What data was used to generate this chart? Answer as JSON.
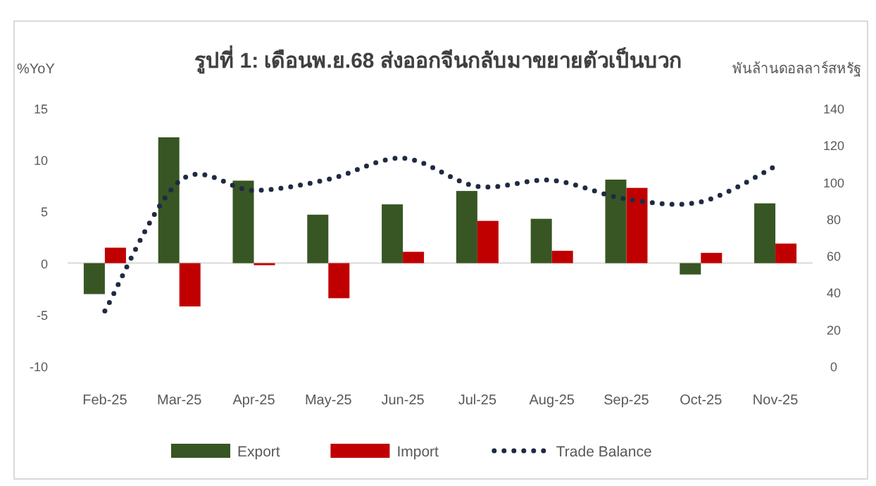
{
  "chart_data": {
    "type": "bar",
    "title": "รูปที่ 1: เดือนพ.ย.68 ส่งออกจีนกลับมาขยายตัวเป็นบวก",
    "ylabel": "%YoY",
    "y2label": "พันล้านดอลลาร์สหรัฐ",
    "categories": [
      "Feb-25",
      "Mar-25",
      "Apr-25",
      "May-25",
      "Jun-25",
      "Jul-25",
      "Aug-25",
      "Sep-25",
      "Oct-25",
      "Nov-25"
    ],
    "series": [
      {
        "name": "Export",
        "color": "#375623",
        "values": [
          -3.0,
          12.2,
          8.0,
          4.7,
          5.7,
          7.0,
          4.3,
          8.1,
          -1.1,
          5.8
        ]
      },
      {
        "name": "Import",
        "color": "#c00000",
        "values": [
          1.5,
          -4.2,
          -0.2,
          -3.4,
          1.1,
          4.1,
          1.2,
          7.3,
          1.0,
          1.9
        ]
      },
      {
        "name": "Trade Balance",
        "type": "line",
        "axis": "y2",
        "color": "#1f2a44",
        "line_style": "dotted",
        "values": [
          30,
          100.5,
          95.5,
          101.5,
          113,
          97.7,
          101,
          90.8,
          89.3,
          108.6
        ]
      }
    ],
    "ylim": [
      -10,
      15
    ],
    "yticks": [
      -10,
      -5,
      0,
      5,
      10,
      15
    ],
    "y2lim": [
      0,
      140
    ],
    "y2ticks": [
      0,
      20,
      40,
      60,
      80,
      100,
      120,
      140
    ],
    "legend": "bottom"
  }
}
